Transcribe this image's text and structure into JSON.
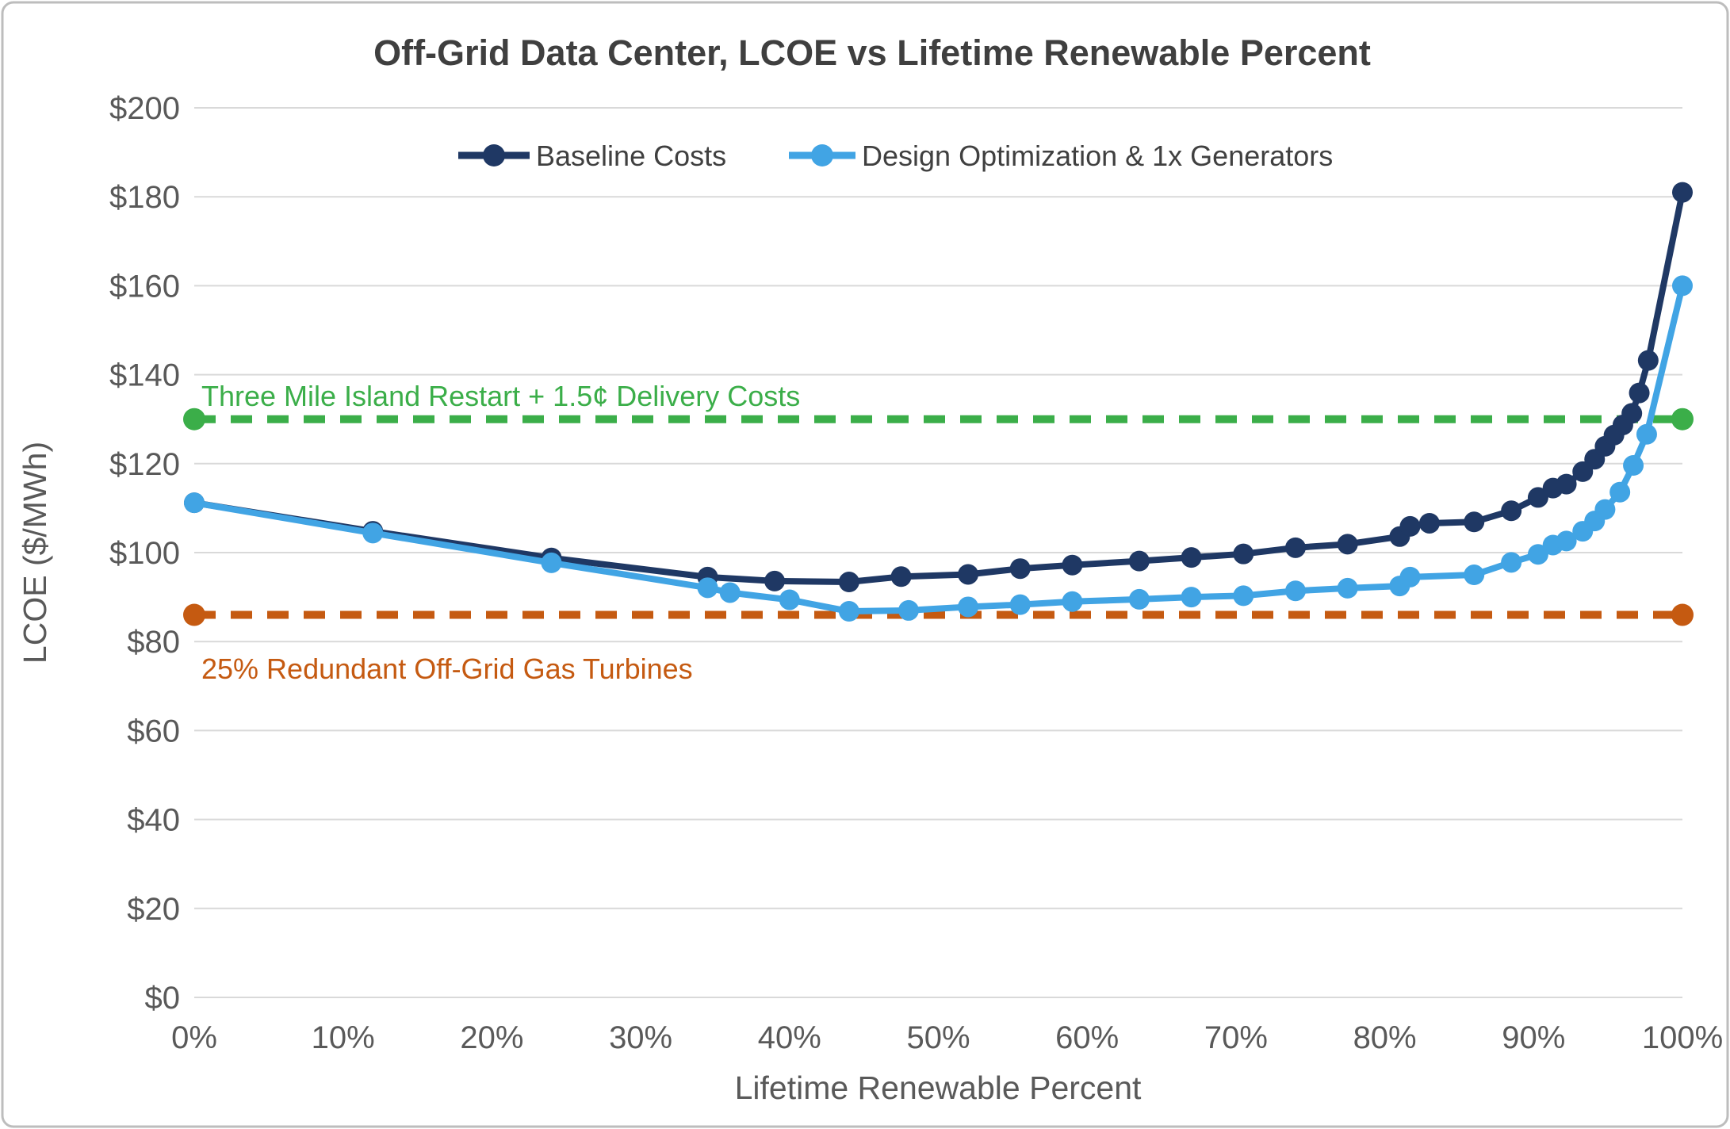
{
  "chart_data": {
    "type": "line",
    "title": "Off-Grid Data Center, LCOE vs Lifetime Renewable Percent",
    "xlabel": "Lifetime Renewable Percent",
    "ylabel": "LCOE ($/MWh)",
    "xlim": [
      0,
      100
    ],
    "ylim": [
      0,
      200
    ],
    "grid": true,
    "legend_position": "top-center",
    "x_ticks": [
      {
        "value": 0,
        "label": "0%"
      },
      {
        "value": 10,
        "label": "10%"
      },
      {
        "value": 20,
        "label": "20%"
      },
      {
        "value": 30,
        "label": "30%"
      },
      {
        "value": 40,
        "label": "40%"
      },
      {
        "value": 50,
        "label": "50%"
      },
      {
        "value": 60,
        "label": "60%"
      },
      {
        "value": 70,
        "label": "70%"
      },
      {
        "value": 80,
        "label": "80%"
      },
      {
        "value": 90,
        "label": "90%"
      },
      {
        "value": 100,
        "label": "100%"
      }
    ],
    "y_ticks": [
      {
        "value": 0,
        "label": "$0"
      },
      {
        "value": 20,
        "label": "$20"
      },
      {
        "value": 40,
        "label": "$40"
      },
      {
        "value": 60,
        "label": "$60"
      },
      {
        "value": 80,
        "label": "$80"
      },
      {
        "value": 100,
        "label": "$100"
      },
      {
        "value": 120,
        "label": "$120"
      },
      {
        "value": 140,
        "label": "$140"
      },
      {
        "value": 160,
        "label": "$160"
      },
      {
        "value": 180,
        "label": "$180"
      },
      {
        "value": 200,
        "label": "$200"
      }
    ],
    "series": [
      {
        "name": "Baseline Costs",
        "color": "#1F3864",
        "points": [
          [
            0,
            111.2
          ],
          [
            12,
            104.8
          ],
          [
            24,
            98.8
          ],
          [
            34.5,
            94.5
          ],
          [
            39,
            93.6
          ],
          [
            44,
            93.4
          ],
          [
            47.5,
            94.6
          ],
          [
            52,
            95.1
          ],
          [
            55.5,
            96.4
          ],
          [
            59,
            97.2
          ],
          [
            63.5,
            98.1
          ],
          [
            67,
            98.9
          ],
          [
            70.5,
            99.7
          ],
          [
            74,
            101.1
          ],
          [
            77.5,
            101.9
          ],
          [
            81,
            103.6
          ],
          [
            81.7,
            105.9
          ],
          [
            83,
            106.6
          ],
          [
            86,
            106.9
          ],
          [
            88.5,
            109.4
          ],
          [
            90.3,
            112.4
          ],
          [
            91.3,
            114.5
          ],
          [
            92.2,
            115.4
          ],
          [
            93.3,
            118.2
          ],
          [
            94.1,
            121.0
          ],
          [
            94.8,
            123.9
          ],
          [
            95.4,
            126.4
          ],
          [
            96.0,
            128.7
          ],
          [
            96.6,
            131.3
          ],
          [
            97.1,
            135.9
          ],
          [
            97.7,
            143.2
          ],
          [
            100,
            181.0
          ]
        ]
      },
      {
        "name": "Design Optimization & 1x Generators",
        "color": "#41A4E4",
        "points": [
          [
            0,
            111.2
          ],
          [
            12,
            104.4
          ],
          [
            24,
            97.7
          ],
          [
            34.5,
            92.1
          ],
          [
            36,
            91.0
          ],
          [
            40,
            89.4
          ],
          [
            44,
            86.8
          ],
          [
            48,
            87.0
          ],
          [
            52,
            87.8
          ],
          [
            55.5,
            88.3
          ],
          [
            59,
            89.0
          ],
          [
            63.5,
            89.5
          ],
          [
            67,
            90.0
          ],
          [
            70.5,
            90.3
          ],
          [
            74,
            91.4
          ],
          [
            77.5,
            92.0
          ],
          [
            81,
            92.5
          ],
          [
            81.7,
            94.5
          ],
          [
            86,
            95.0
          ],
          [
            88.5,
            97.8
          ],
          [
            90.3,
            99.6
          ],
          [
            91.3,
            101.7
          ],
          [
            92.2,
            102.6
          ],
          [
            93.3,
            104.8
          ],
          [
            94.1,
            107.1
          ],
          [
            94.8,
            109.7
          ],
          [
            95.8,
            113.6
          ],
          [
            96.7,
            119.6
          ],
          [
            97.6,
            126.6
          ],
          [
            100,
            160.0
          ]
        ]
      }
    ],
    "reference_lines": [
      {
        "label": "Three Mile Island Restart + 1.5¢ Delivery Costs",
        "value": 130,
        "color": "#3BAE49"
      },
      {
        "label": "25% Redundant Off-Grid Gas Turbines",
        "value": 86,
        "color": "#C55A11"
      }
    ]
  }
}
